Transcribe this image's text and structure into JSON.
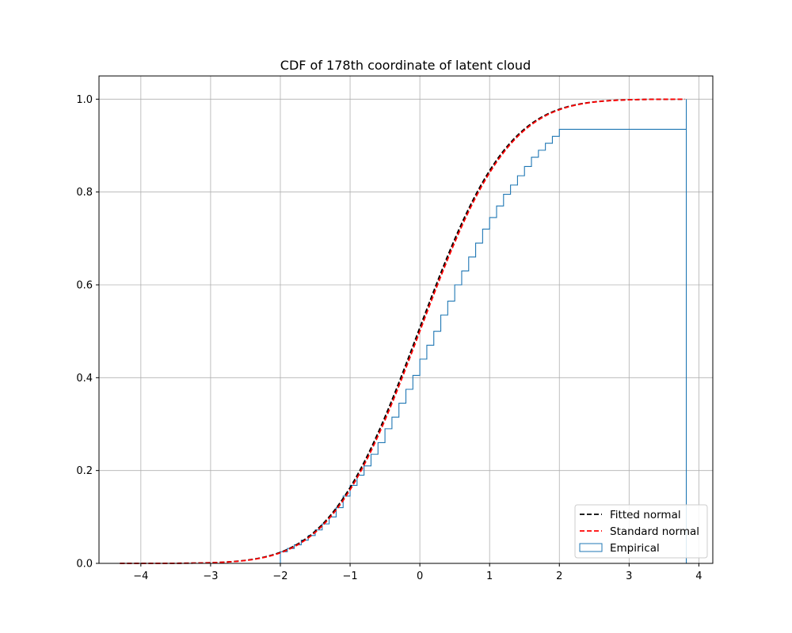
{
  "chart_data": {
    "type": "line",
    "title": "CDF of 178th coordinate of latent cloud",
    "xlabel": "",
    "ylabel": "",
    "xlim": [
      -4.6,
      4.2
    ],
    "ylim": [
      0.0,
      1.05
    ],
    "x_ticks": [
      -4,
      -3,
      -2,
      -1,
      0,
      1,
      2,
      3,
      4
    ],
    "x_tick_labels": [
      "−4",
      "−3",
      "−2",
      "−1",
      "0",
      "1",
      "2",
      "3",
      "4"
    ],
    "y_ticks": [
      0.0,
      0.2,
      0.4,
      0.6,
      0.8,
      1.0
    ],
    "y_tick_labels": [
      "0.0",
      "0.2",
      "0.4",
      "0.6",
      "0.8",
      "1.0"
    ],
    "grid": true,
    "legend_position": "lower-right",
    "series": [
      {
        "name": "Fitted normal",
        "kind": "normal-cdf",
        "mean": -0.02,
        "std": 1.0,
        "x_range": [
          -4.3,
          3.8
        ],
        "color": "#000000",
        "style": "dashed"
      },
      {
        "name": "Standard normal",
        "kind": "normal-cdf",
        "mean": 0.0,
        "std": 1.0,
        "x_range": [
          -4.3,
          3.8
        ],
        "color": "#ff0000",
        "style": "dashed"
      },
      {
        "name": "Empirical",
        "kind": "step-histogram",
        "color": "#1f77b4",
        "x": [
          -4.3,
          -2.0,
          -1.9,
          -1.8,
          -1.7,
          -1.6,
          -1.5,
          -1.4,
          -1.3,
          -1.2,
          -1.1,
          -1.0,
          -0.9,
          -0.8,
          -0.7,
          -0.6,
          -0.5,
          -0.4,
          -0.3,
          -0.2,
          -0.1,
          0.0,
          0.1,
          0.2,
          0.3,
          0.4,
          0.5,
          0.6,
          0.7,
          0.8,
          0.9,
          1.0,
          1.1,
          1.2,
          1.3,
          1.4,
          1.5,
          1.6,
          1.7,
          1.8,
          1.9,
          2.0,
          3.82
        ],
        "y": [
          0.0,
          0.025,
          0.032,
          0.04,
          0.05,
          0.06,
          0.072,
          0.085,
          0.1,
          0.12,
          0.145,
          0.168,
          0.19,
          0.21,
          0.235,
          0.26,
          0.29,
          0.315,
          0.345,
          0.375,
          0.405,
          0.44,
          0.47,
          0.5,
          0.535,
          0.565,
          0.6,
          0.63,
          0.66,
          0.69,
          0.72,
          0.745,
          0.77,
          0.795,
          0.815,
          0.835,
          0.855,
          0.875,
          0.89,
          0.905,
          0.92,
          0.935,
          1.0
        ]
      }
    ]
  }
}
